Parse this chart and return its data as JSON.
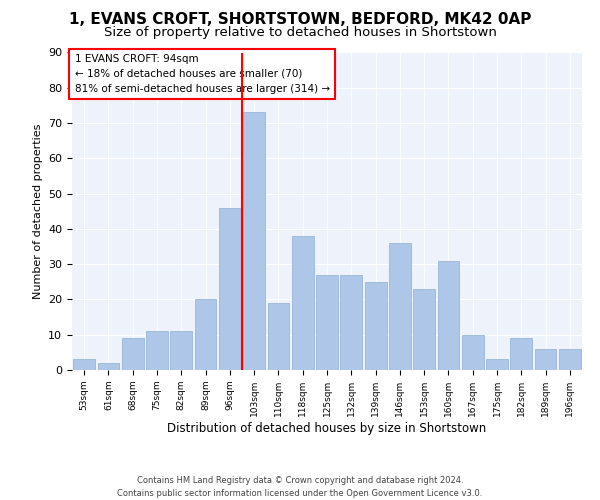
{
  "title1": "1, EVANS CROFT, SHORTSTOWN, BEDFORD, MK42 0AP",
  "title2": "Size of property relative to detached houses in Shortstown",
  "xlabel": "Distribution of detached houses by size in Shortstown",
  "ylabel": "Number of detached properties",
  "footer1": "Contains HM Land Registry data © Crown copyright and database right 2024.",
  "footer2": "Contains public sector information licensed under the Open Government Licence v3.0.",
  "annotation_line1": "1 EVANS CROFT: 94sqm",
  "annotation_line2": "← 18% of detached houses are smaller (70)",
  "annotation_line3": "81% of semi-detached houses are larger (314) →",
  "categories": [
    "53sqm",
    "61sqm",
    "68sqm",
    "75sqm",
    "82sqm",
    "89sqm",
    "96sqm",
    "103sqm",
    "110sqm",
    "118sqm",
    "125sqm",
    "132sqm",
    "139sqm",
    "146sqm",
    "153sqm",
    "160sqm",
    "167sqm",
    "175sqm",
    "182sqm",
    "189sqm",
    "196sqm"
  ],
  "values": [
    3,
    2,
    9,
    11,
    11,
    20,
    46,
    73,
    19,
    38,
    27,
    27,
    25,
    36,
    23,
    31,
    10,
    3,
    9,
    6,
    6
  ],
  "bar_color": "#aec6e8",
  "bar_edgecolor": "#9ab8d8",
  "vline_x": 6.5,
  "vline_color": "red",
  "ylim": [
    0,
    90
  ],
  "yticks": [
    0,
    10,
    20,
    30,
    40,
    50,
    60,
    70,
    80,
    90
  ],
  "title1_fontsize": 11,
  "title2_fontsize": 9.5,
  "annotation_fontsize": 7.5,
  "xlabel_fontsize": 8.5,
  "ylabel_fontsize": 8,
  "xtick_fontsize": 6.5,
  "ytick_fontsize": 8,
  "footer_fontsize": 6,
  "background_color": "#eef2fa"
}
